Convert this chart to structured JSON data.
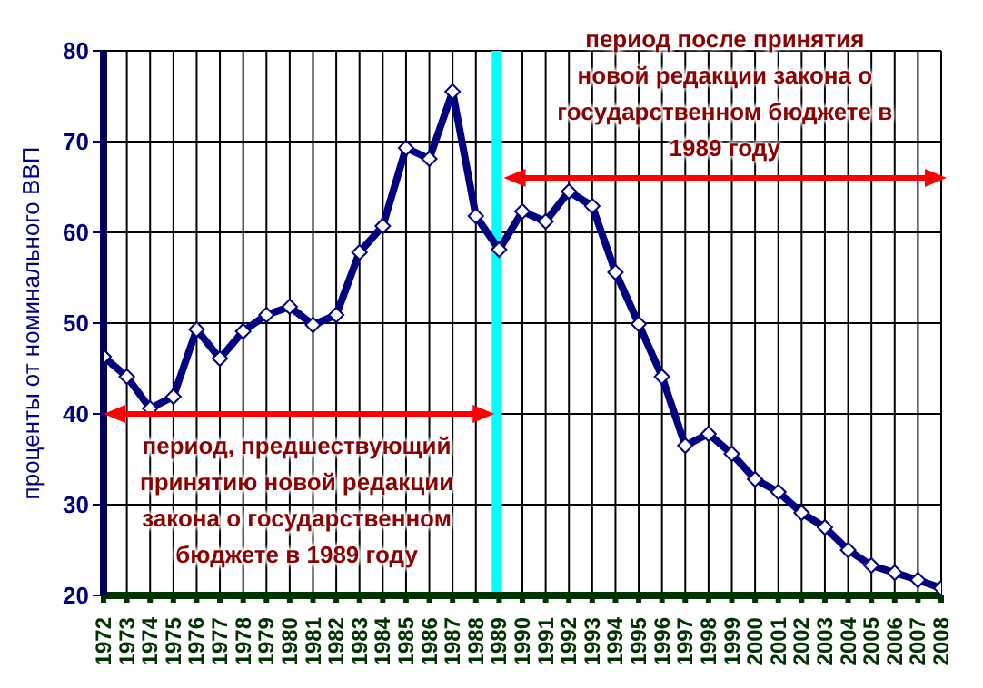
{
  "chart_data": {
    "type": "line",
    "ylabel": "проценты от номинального ВВП",
    "x": [
      1972,
      1973,
      1974,
      1975,
      1976,
      1977,
      1978,
      1979,
      1980,
      1981,
      1982,
      1983,
      1984,
      1985,
      1986,
      1987,
      1988,
      1989,
      1990,
      1991,
      1992,
      1993,
      1994,
      1995,
      1996,
      1997,
      1998,
      1999,
      2000,
      2001,
      2002,
      2003,
      2004,
      2005,
      2006,
      2007,
      2008
    ],
    "series": [
      {
        "color": "#000080",
        "values": [
          46.3,
          44.1,
          40.6,
          41.9,
          49.3,
          46.1,
          49.1,
          50.9,
          51.8,
          49.8,
          50.9,
          57.8,
          60.7,
          69.3,
          68.1,
          75.5,
          61.8,
          58.1,
          62.3,
          61.2,
          64.5,
          62.9,
          55.6,
          49.9,
          44.1,
          36.5,
          37.8,
          35.6,
          32.8,
          31.4,
          29.1,
          27.5,
          25.0,
          23.3,
          22.5,
          21.7,
          20.8
        ]
      }
    ],
    "xlim": [
      1972,
      2008
    ],
    "xticks": [
      1972,
      1973,
      1974,
      1975,
      1976,
      1977,
      1978,
      1979,
      1980,
      1981,
      1982,
      1983,
      1984,
      1985,
      1986,
      1987,
      1988,
      1989,
      1990,
      1991,
      1992,
      1993,
      1994,
      1995,
      1996,
      1997,
      1998,
      1999,
      2000,
      2001,
      2002,
      2003,
      2004,
      2005,
      2006,
      2007,
      2008
    ],
    "ylim": [
      20,
      80
    ],
    "yticks": [
      20,
      30,
      40,
      50,
      60,
      70,
      80
    ],
    "bands": [
      {
        "axis": "x",
        "from": 1988.8,
        "to": 1989,
        "color": "#00ffff"
      }
    ],
    "annotations": [
      "период, предшествующий\nпринятию новой редакции\nзакона о государственном\nбюджете в 1989 году",
      "период после принятия\nновой редакции закона о\nгосударственном бюджете в\n1989 году"
    ],
    "grid": true,
    "marker": "diamond",
    "line_style": "solid"
  }
}
